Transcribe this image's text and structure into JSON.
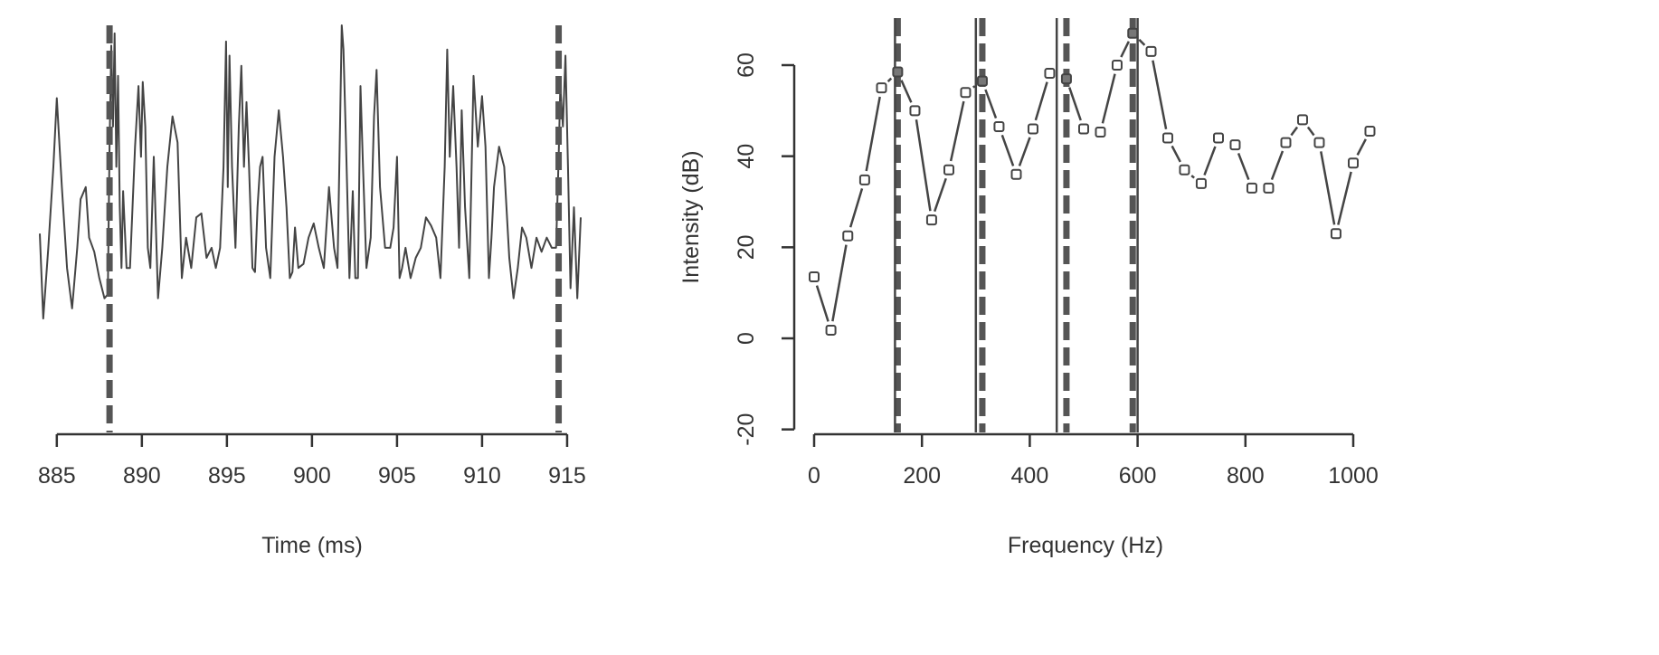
{
  "chart_data": [
    {
      "type": "line",
      "title": "",
      "xlabel": "Time (ms)",
      "ylabel": "",
      "xlim": [
        884,
        915.8
      ],
      "ylim": [
        -1.0,
        1.0
      ],
      "xticks": [
        885,
        890,
        895,
        900,
        905,
        910,
        915
      ],
      "xtick_labels": [
        "885",
        "890",
        "895",
        "900",
        "905",
        "910",
        "915"
      ],
      "grid": false,
      "y_axis_shown": false,
      "vlines": [
        {
          "x": 888.1,
          "style": "dashed"
        },
        {
          "x": 914.5,
          "style": "dashed"
        }
      ],
      "series": [
        {
          "x": [
            884.0,
            884.2,
            884.5,
            884.8,
            885.0,
            885.3,
            885.6,
            885.9,
            886.2,
            886.4,
            886.7,
            886.9,
            887.2,
            887.5,
            887.8,
            888.0,
            888.1,
            888.2,
            888.3,
            888.4,
            888.5,
            888.6,
            888.7,
            888.8,
            888.9,
            889.1,
            889.3,
            889.6,
            889.8,
            889.95,
            890.05,
            890.2,
            890.35,
            890.5,
            890.7,
            890.95,
            891.2,
            891.5,
            891.8,
            892.1,
            892.35,
            892.6,
            892.9,
            893.2,
            893.5,
            893.8,
            894.1,
            894.35,
            894.6,
            894.8,
            894.95,
            895.05,
            895.15,
            895.3,
            895.5,
            895.7,
            895.85,
            896.0,
            896.15,
            896.3,
            896.5,
            896.65,
            896.8,
            896.95,
            897.1,
            897.3,
            897.55,
            897.8,
            898.05,
            898.3,
            898.5,
            898.7,
            898.85,
            899.0,
            899.2,
            899.5,
            899.8,
            900.1,
            900.4,
            900.7,
            901.0,
            901.3,
            901.5,
            901.65,
            901.75,
            901.85,
            902.0,
            902.2,
            902.4,
            902.55,
            902.7,
            902.85,
            903.0,
            903.2,
            903.45,
            903.65,
            903.8,
            904.0,
            904.3,
            904.6,
            904.8,
            905.0,
            905.15,
            905.3,
            905.5,
            905.8,
            906.1,
            906.4,
            906.7,
            907.0,
            907.3,
            907.55,
            907.8,
            907.95,
            908.1,
            908.3,
            908.5,
            908.65,
            908.8,
            909.0,
            909.25,
            909.5,
            909.75,
            910.0,
            910.2,
            910.4,
            910.55,
            910.7,
            911.0,
            911.3,
            911.6,
            911.85,
            912.1,
            912.35,
            912.6,
            912.9,
            913.2,
            913.5,
            913.8,
            914.1,
            914.35,
            914.5,
            914.6,
            914.75,
            914.9,
            915.05,
            915.2,
            915.4,
            915.6,
            915.8
          ],
          "y": [
            -0.03,
            -0.45,
            -0.1,
            0.3,
            0.64,
            0.2,
            -0.2,
            -0.4,
            -0.1,
            0.14,
            0.2,
            -0.05,
            -0.12,
            -0.25,
            -0.35,
            -0.33,
            0.4,
            0.9,
            0.5,
            0.96,
            0.3,
            0.75,
            0.1,
            -0.2,
            0.18,
            -0.2,
            -0.2,
            0.4,
            0.7,
            0.35,
            0.72,
            0.5,
            -0.1,
            -0.2,
            0.35,
            -0.35,
            -0.1,
            0.3,
            0.55,
            0.42,
            -0.25,
            -0.05,
            -0.2,
            0.05,
            0.07,
            -0.15,
            -0.1,
            -0.2,
            -0.1,
            0.3,
            0.92,
            0.2,
            0.85,
            0.3,
            -0.1,
            0.5,
            0.8,
            0.3,
            0.62,
            0.3,
            -0.2,
            -0.22,
            0.1,
            0.3,
            0.35,
            -0.1,
            -0.25,
            0.35,
            0.58,
            0.35,
            0.1,
            -0.25,
            -0.22,
            0.0,
            -0.2,
            -0.18,
            -0.05,
            0.02,
            -0.1,
            -0.2,
            0.2,
            -0.1,
            -0.2,
            0.5,
            1.0,
            0.88,
            0.42,
            -0.25,
            0.18,
            -0.25,
            -0.25,
            0.7,
            0.3,
            -0.2,
            -0.05,
            0.55,
            0.78,
            0.2,
            -0.1,
            -0.1,
            0.0,
            0.35,
            -0.25,
            -0.2,
            -0.1,
            -0.25,
            -0.15,
            -0.1,
            0.05,
            0.01,
            -0.05,
            -0.25,
            0.3,
            0.88,
            0.35,
            0.7,
            0.3,
            -0.1,
            0.58,
            0.1,
            -0.25,
            0.75,
            0.4,
            0.65,
            0.4,
            -0.25,
            -0.05,
            0.2,
            0.4,
            0.3,
            -0.15,
            -0.35,
            -0.2,
            0.0,
            -0.05,
            -0.2,
            -0.05,
            -0.12,
            -0.05,
            -0.1,
            -0.1,
            0.35,
            0.7,
            0.5,
            0.85,
            0.3,
            -0.3,
            0.1,
            -0.35,
            0.05
          ]
        }
      ]
    },
    {
      "type": "line",
      "title": "",
      "xlabel": "Frequency (Hz)",
      "ylabel": "Intensity (dB)",
      "xlim": [
        -30,
        1050
      ],
      "ylim": [
        -20,
        68
      ],
      "xticks": [
        0,
        200,
        400,
        600,
        800,
        1000
      ],
      "xtick_labels": [
        "0",
        "200",
        "400",
        "600",
        "800",
        "1000"
      ],
      "yticks": [
        -20,
        0,
        20,
        40,
        60
      ],
      "ytick_labels": [
        "-20",
        "0",
        "20",
        "40",
        "60"
      ],
      "grid": false,
      "vlines_solid": [
        150,
        300,
        450,
        600
      ],
      "vlines_dashed": [
        155,
        312,
        468,
        591
      ],
      "highlighted_points_x": [
        155,
        312,
        468,
        591
      ],
      "series": [
        {
          "x": [
            0,
            31.2,
            62.5,
            93.8,
            125,
            155,
            187,
            218,
            250,
            281,
            312,
            343,
            375,
            406,
            437,
            468,
            500,
            531,
            562,
            591,
            625,
            656,
            687,
            718,
            750,
            781,
            812,
            843,
            875,
            906,
            937,
            968,
            1000,
            1031
          ],
          "y": [
            13.5,
            1.8,
            22.5,
            34.8,
            55.0,
            58.5,
            50.0,
            26.0,
            37.0,
            54.0,
            56.5,
            46.5,
            36.0,
            46.0,
            58.2,
            57.0,
            46.0,
            45.3,
            60.0,
            67.0,
            63.0,
            44.0,
            37.0,
            34.0,
            44.0,
            42.5,
            33.0,
            33.0,
            43.0,
            48.0,
            43.0,
            23.0,
            38.5,
            45.5
          ]
        }
      ]
    }
  ]
}
